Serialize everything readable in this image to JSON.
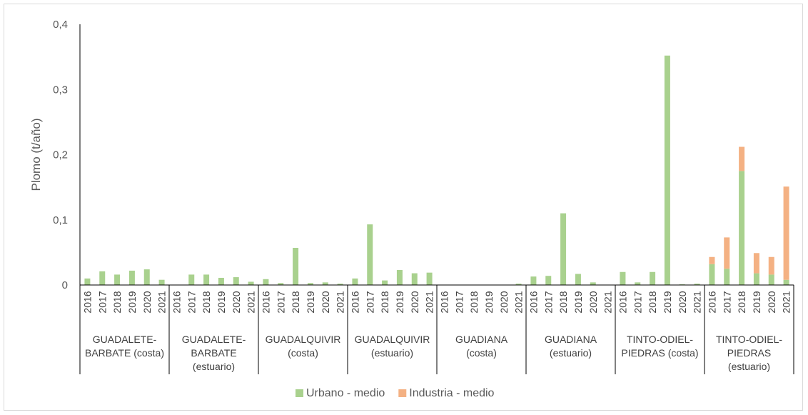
{
  "chart_data": {
    "type": "bar",
    "stacked": true,
    "ylabel": "Plomo (t/año)",
    "ylim": [
      0,
      0.4
    ],
    "yticks": [
      "0",
      "0,1",
      "0,2",
      "0,3",
      "0,4"
    ],
    "grid": false,
    "legend_position": "bottom",
    "years": [
      "2016",
      "2017",
      "2018",
      "2019",
      "2020",
      "2021"
    ],
    "groups": [
      {
        "label": [
          "GUADALETE-",
          "BARBATE (costa)"
        ]
      },
      {
        "label": [
          "GUADALETE-",
          "BARBATE",
          "(estuario)"
        ]
      },
      {
        "label": [
          "GUADALQUIVIR",
          "(costa)"
        ]
      },
      {
        "label": [
          "GUADALQUIVIR",
          "(estuario)"
        ]
      },
      {
        "label": [
          "GUADIANA",
          "(costa)"
        ]
      },
      {
        "label": [
          "GUADIANA",
          "(estuario)"
        ]
      },
      {
        "label": [
          "TINTO-ODIEL-",
          "PIEDRAS (costa)"
        ]
      },
      {
        "label": [
          "TINTO-ODIEL-",
          "PIEDRAS",
          "(estuario)"
        ]
      }
    ],
    "series": [
      {
        "name": "Urbano - medio",
        "color": "#a9d18e",
        "values": [
          [
            0.01,
            0.021,
            0.016,
            0.022,
            0.024,
            0.008
          ],
          [
            0.0,
            0.016,
            0.016,
            0.011,
            0.012,
            0.005
          ],
          [
            0.009,
            0.003,
            0.057,
            0.003,
            0.004,
            0.002
          ],
          [
            0.01,
            0.093,
            0.007,
            0.023,
            0.018,
            0.019
          ],
          [
            0.0,
            0.0,
            0.0,
            0.0,
            0.0,
            0.002
          ],
          [
            0.013,
            0.014,
            0.11,
            0.017,
            0.004,
            0.0
          ],
          [
            0.02,
            0.004,
            0.02,
            0.352,
            0.001,
            0.002
          ],
          [
            0.032,
            0.025,
            0.175,
            0.018,
            0.016,
            0.008
          ]
        ]
      },
      {
        "name": "Industria - medio",
        "color": "#f4b183",
        "values": [
          [
            0,
            0,
            0,
            0,
            0,
            0
          ],
          [
            0,
            0,
            0,
            0,
            0,
            0
          ],
          [
            0,
            0,
            0,
            0,
            0,
            0
          ],
          [
            0,
            0,
            0,
            0,
            0,
            0
          ],
          [
            0,
            0,
            0,
            0,
            0,
            0
          ],
          [
            0,
            0,
            0,
            0,
            0,
            0
          ],
          [
            0,
            0,
            0,
            0,
            0,
            0
          ],
          [
            0.011,
            0.048,
            0.037,
            0.031,
            0.027,
            0.143
          ]
        ]
      }
    ]
  }
}
